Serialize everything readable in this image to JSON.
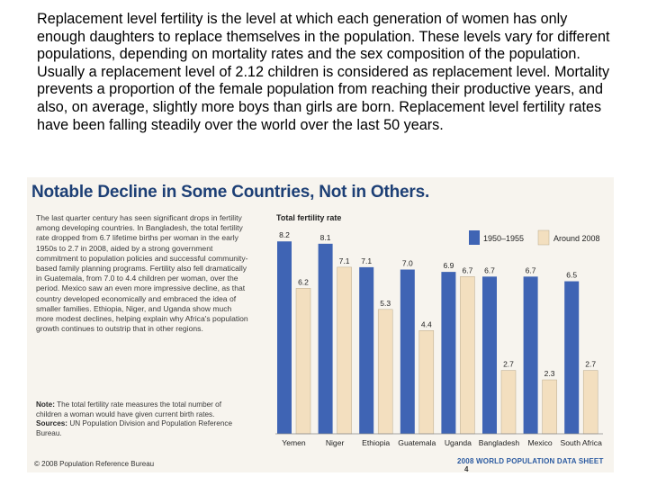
{
  "intro": {
    "paragraph": "Replacement level fertility is the level at which each generation of women has only enough daughters to replace themselves in the population. These levels vary for different populations, depending on mortality rates and the sex composition of the population. Usually a replacement level of 2.12 children is considered as replacement level. Mortality prevents a proportion of the female population from reaching their productive years, and also, on average, slightly more boys than girls are born. Replacement level fertility rates have been falling steadily over the world over the last 50 years."
  },
  "scan": {
    "headline": "Notable Decline in Some Countries, Not in Others.",
    "side_text": "The last quarter century has seen significant drops in fertility among developing countries. In Bangladesh, the total fertility rate dropped from 6.7 lifetime births per woman in the early 1950s to 2.7 in 2008, aided by a strong government commitment to population policies and successful community-based family planning programs. Fertility also fell dramatically in Guatemala, from 7.0 to 4.4 children per woman, over the period. Mexico saw an even more impressive decline, as that country developed economically and embraced the idea of smaller families. Ethiopia, Niger, and Uganda show much more modest declines, helping explain why Africa's population growth continues to outstrip that in other regions.",
    "note_label": "Note:",
    "note_text": "The total fertility rate measures the total number of children a woman would have given current birth rates.",
    "sources_label": "Sources:",
    "sources_text": "UN Population Division and Population Reference Bureau.",
    "copyright": "© 2008 Population Reference Bureau",
    "footer": "2008 WORLD POPULATION DATA SHEET",
    "page_number": "4"
  },
  "colors": {
    "series_1950": "#3f64b4",
    "series_2008": "#f3dfbf",
    "headline": "#1d3f75"
  },
  "chart_data": {
    "type": "bar",
    "title": "Total fertility rate",
    "categories": [
      "Yemen",
      "Niger",
      "Ethiopia",
      "Guatemala",
      "Uganda",
      "Bangladesh",
      "Mexico",
      "South Africa"
    ],
    "series": [
      {
        "name": "1950–1955",
        "values": [
          8.2,
          8.1,
          7.1,
          7.0,
          6.9,
          6.7,
          6.7,
          6.5
        ]
      },
      {
        "name": "Around 2008",
        "values": [
          6.2,
          7.1,
          5.3,
          4.4,
          6.7,
          2.7,
          2.3,
          2.7
        ]
      }
    ],
    "ylim": [
      0,
      9
    ],
    "legend_position": "top-right",
    "grid": false
  }
}
